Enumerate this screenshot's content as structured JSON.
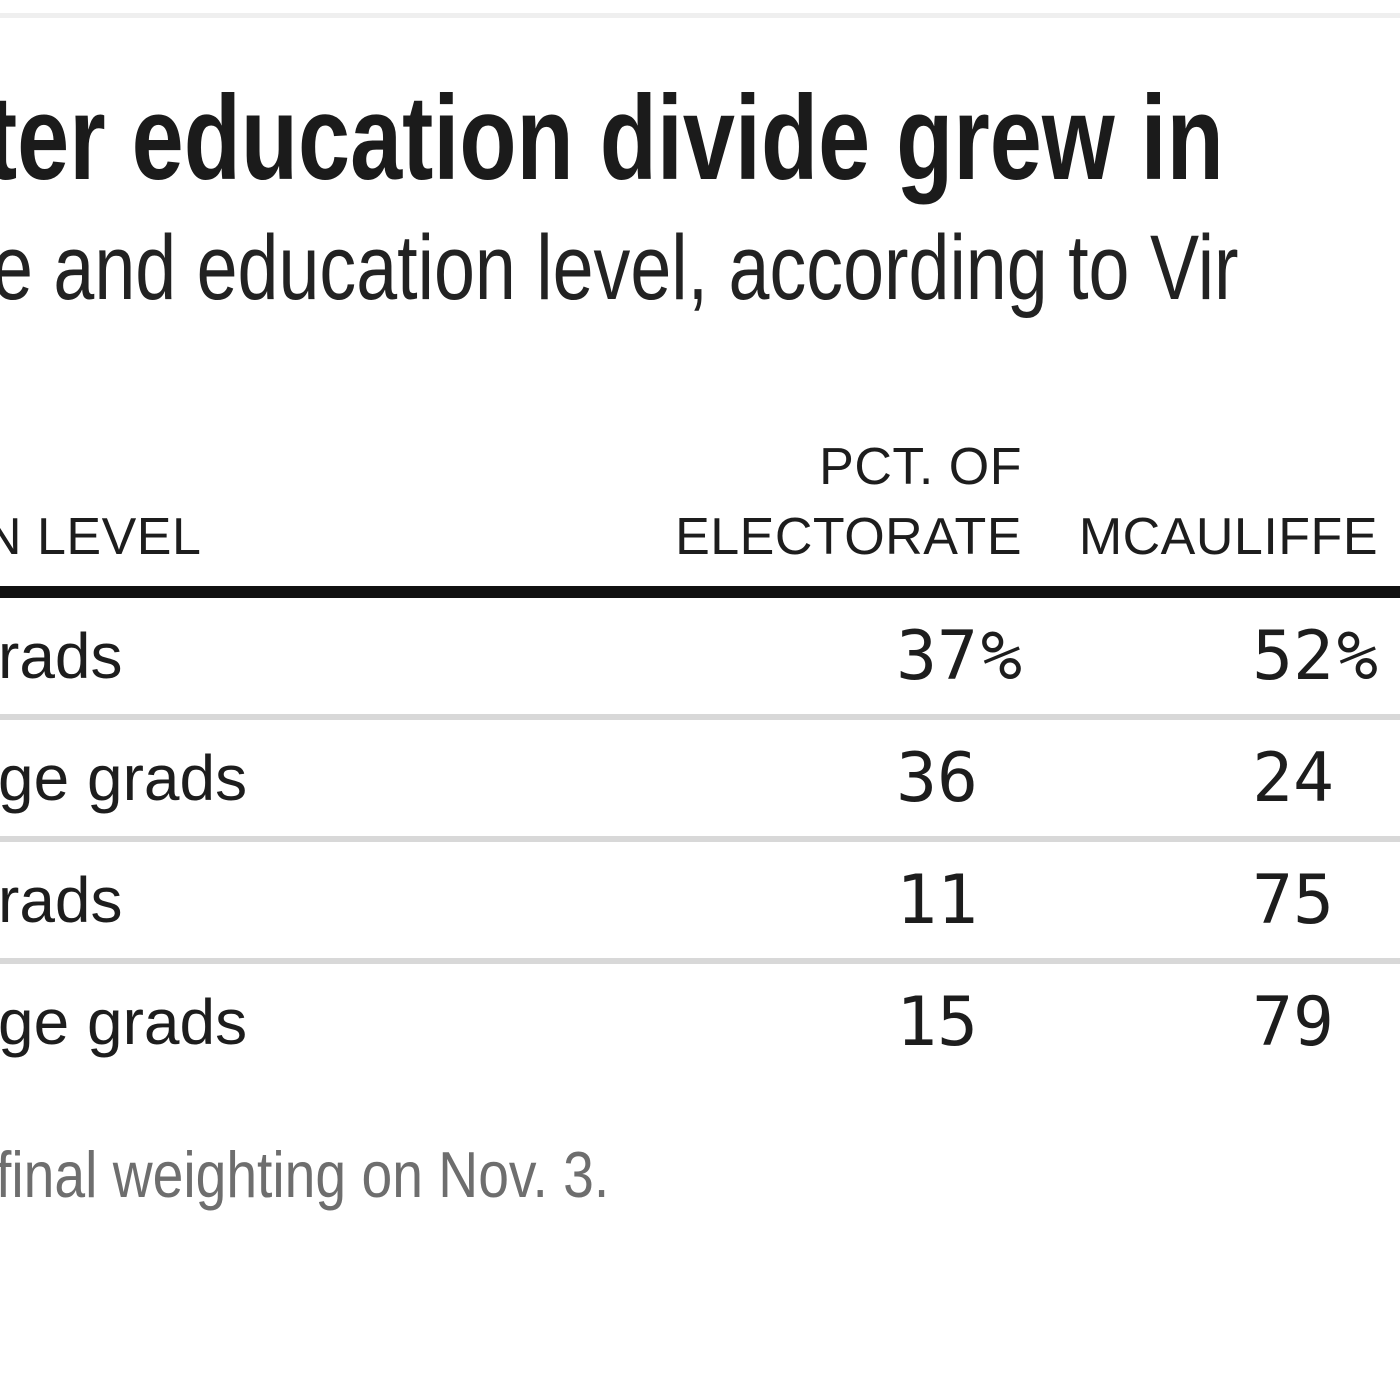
{
  "colors": {
    "background": "#ffffff",
    "text": "#1d1d1d",
    "title_text": "#1b1b1b",
    "thick_rule": "#111111",
    "row_rule": "#d8d8d8",
    "top_rule": "#efefef",
    "footer_text": "#6e6e6e"
  },
  "header": {
    "title": "ter education divide grew in",
    "subtitle": "e and education level, according to Vir"
  },
  "table": {
    "col1_header": "N LEVEL",
    "col2_header_line1": "PCT. OF",
    "col2_header_line2": "ELECTORATE",
    "col3_header": "MCAULIFFE",
    "rows": [
      {
        "label": "rads",
        "electorate": "37",
        "electorate_suffix": "%",
        "mcauliffe": "52",
        "mcauliffe_suffix": "%"
      },
      {
        "label": "ge grads",
        "electorate": "36",
        "electorate_suffix": "",
        "mcauliffe": "24",
        "mcauliffe_suffix": ""
      },
      {
        "label": "rads",
        "electorate": "11",
        "electorate_suffix": "",
        "mcauliffe": "75",
        "mcauliffe_suffix": ""
      },
      {
        "label": "ge grads",
        "electorate": "15",
        "electorate_suffix": "",
        "mcauliffe": "79",
        "mcauliffe_suffix": ""
      }
    ]
  },
  "footer": {
    "note": "final weighting on Nov. 3."
  },
  "chart_data": {
    "type": "table",
    "title": "ter education divide grew in",
    "subtitle": "e and education level, according to Vir",
    "columns": [
      "N LEVEL",
      "PCT. OF ELECTORATE",
      "MCAULIFFE"
    ],
    "rows": [
      [
        "rads",
        "37%",
        "52%"
      ],
      [
        "ge grads",
        "36",
        "24"
      ],
      [
        "rads",
        "11",
        "75"
      ],
      [
        "ge grads",
        "15",
        "79"
      ]
    ],
    "note": "final weighting on Nov. 3.",
    "layout": "numeric columns right-aligned, percent sign shown on first row only, cropped on left and right edges"
  }
}
